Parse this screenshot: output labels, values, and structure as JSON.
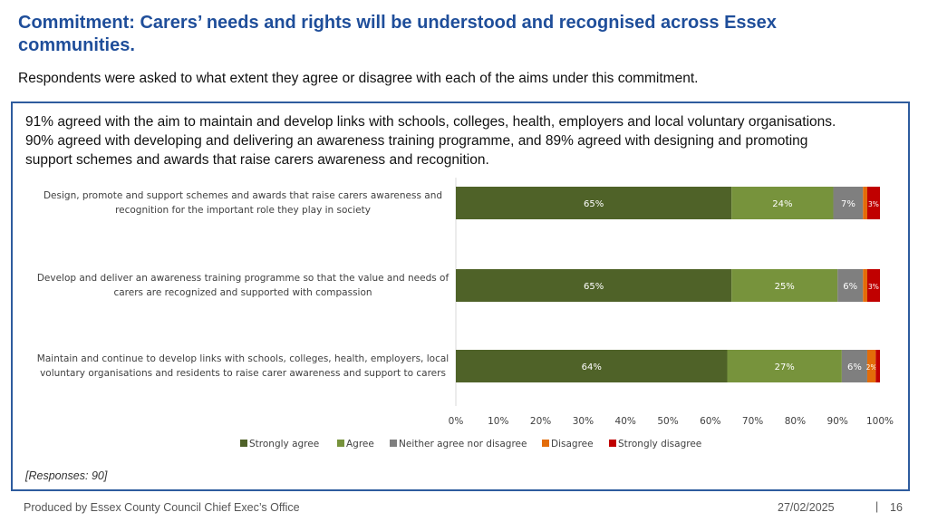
{
  "header": {
    "title": "Commitment: Carers’ needs and rights will be understood and recognised across Essex communities.",
    "subtitle": "Respondents were asked to what extent they agree or disagree with each of the aims under this commitment."
  },
  "summary": "91% agreed with the aim to maintain and develop links with schools, colleges, health, employers and local voluntary organisations. 90% agreed with developing and delivering an awareness training programme, and 89% agreed with designing and promoting support schemes and awards that raise carers awareness and recognition.",
  "responses_note": "[Responses: 90]",
  "colors": {
    "strongly_agree": "#4f6228",
    "agree": "#77933c",
    "neutral": "#7f7f7f",
    "disagree": "#e36c09",
    "strongly_disagree": "#c00000"
  },
  "chart_data": {
    "type": "bar",
    "orientation": "horizontal",
    "stacked": true,
    "categories": [
      [
        "Design, promote and support schemes and awards that raise carers awareness and",
        "recognition for the important role they play in society"
      ],
      [
        "Develop and deliver an awareness training programme so that the value and needs of",
        "carers are recognized and supported with compassion"
      ],
      [
        "Maintain and continue to develop links with schools, colleges, health, employers, local",
        "voluntary organisations and residents to raise carer awareness and support to carers"
      ]
    ],
    "series": [
      {
        "name": "Strongly agree",
        "color": "#4f6228",
        "values": [
          65,
          65,
          64
        ],
        "labels": [
          "65%",
          "65%",
          "64%"
        ]
      },
      {
        "name": "Agree",
        "color": "#77933c",
        "values": [
          24,
          25,
          27
        ],
        "labels": [
          "24%",
          "25%",
          "27%"
        ]
      },
      {
        "name": "Neither agree nor disagree",
        "color": "#7f7f7f",
        "values": [
          7,
          6,
          6
        ],
        "labels": [
          "7%",
          "6%",
          "6%"
        ]
      },
      {
        "name": "Disagree",
        "color": "#e36c09",
        "values": [
          1,
          1,
          2
        ],
        "labels": [
          "",
          "",
          "2%"
        ]
      },
      {
        "name": "Strongly disagree",
        "color": "#c00000",
        "values": [
          3,
          3,
          1
        ],
        "labels": [
          "3%",
          "3%",
          ""
        ]
      }
    ],
    "xlim": [
      0,
      100
    ],
    "x_ticks": [
      "0%",
      "10%",
      "20%",
      "30%",
      "40%",
      "50%",
      "60%",
      "70%",
      "80%",
      "90%",
      "100%"
    ],
    "legend_position": "bottom"
  },
  "footer": {
    "producer": "Produced by Essex County Council Chief Exec’s Office",
    "date": "27/02/2025",
    "separator": "|",
    "page": "16"
  }
}
